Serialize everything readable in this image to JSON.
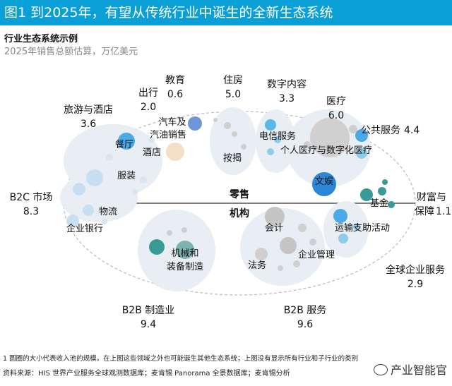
{
  "header": {
    "title": "图1 到2025年，有望从传统行业中诞生的全新生态系统"
  },
  "subtitle": "行业生态系统示例",
  "unit_note": "2025年销售总额估算，万亿美元",
  "center": {
    "top": "零售",
    "bottom": "机构"
  },
  "labels": {
    "education": {
      "name": "教育",
      "value": "0.6"
    },
    "housing": {
      "name": "住房",
      "value": "5.0"
    },
    "digital_content": {
      "name": "数字内容",
      "value": "3.3"
    },
    "mobility": {
      "name": "出行",
      "value": "2.0"
    },
    "healthcare": {
      "name": "医疗",
      "value": "6.0"
    },
    "travel": {
      "name": "旅游与酒店",
      "value": "3.6"
    },
    "public_services": {
      "name": "公共服务",
      "value": "4.4"
    },
    "b2c": {
      "name": "B2C 市场",
      "value": "8.3"
    },
    "wealth": {
      "name1": "财富与",
      "name2": "保障",
      "value": "1.1"
    },
    "global_corp": {
      "name": "全球企业服务",
      "value": "2.9"
    },
    "b2b_mfg": {
      "name": "B2B 制造业",
      "value": "9.4"
    },
    "b2b_svc": {
      "name": "B2B 服务",
      "value": "9.6"
    }
  },
  "inner_labels": {
    "car1": "汽车及",
    "car2": "汽油销售",
    "restaurant": "餐厅",
    "hotel": "酒店",
    "apparel": "服装",
    "mortgage": "按揭",
    "telecom": "电信服务",
    "health_digital": "个人医疗与数字化医疗",
    "entertainment": "文娱",
    "fund": "基金",
    "logistics": "物流",
    "corp_bank": "企业银行",
    "machinery1": "机械和",
    "machinery2": "装备制造",
    "accounting": "会计",
    "enterprise_mgmt": "企业管理",
    "legal": "法务",
    "transport": "运输支助活动"
  },
  "footnote": "1 圆圈的大小代表收入池的规模。在上图这些领域之外也可能诞生其他生态系统；上图没有显示所有行业和子行业的类别",
  "source": "资料来源：HIS 世界产业服务全球观测数据库；麦肯锡 Panorama 全景数据库；麦肯锡分析",
  "watermark": "产业智能官",
  "colors": {
    "header_bg": "#0b9fd8",
    "blue": "#4aa9e6",
    "teal": "#3a9a95",
    "gray": "#c9c9c9"
  }
}
